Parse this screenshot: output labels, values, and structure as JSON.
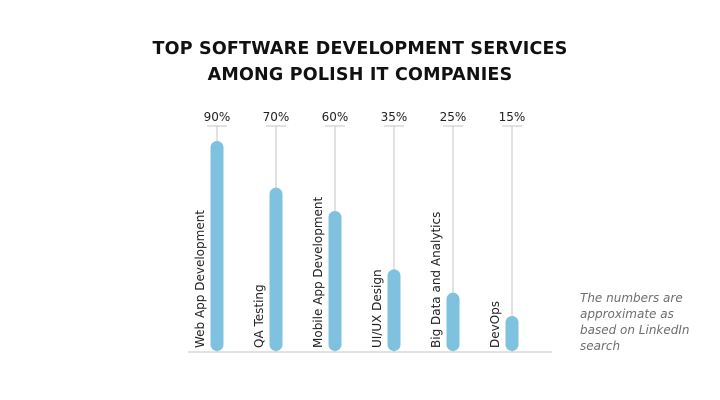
{
  "chart_data": {
    "type": "bar",
    "title_lines": [
      "TOP SOFTWARE DEVELOPMENT SERVICES",
      "AMONG POLISH IT COMPANIES"
    ],
    "categories": [
      "Web App Development",
      "QA Testing",
      "Mobile App Development",
      "UI/UX Design",
      "Big Data and Analytics",
      "DevOps"
    ],
    "values": [
      90,
      70,
      60,
      35,
      25,
      15
    ],
    "value_labels": [
      "90%",
      "70%",
      "60%",
      "35%",
      "25%",
      "15%"
    ],
    "ylim": [
      0,
      100
    ],
    "orientation": "vertical",
    "legend": "none",
    "grid": false,
    "bar_color": "#7ec2e0",
    "line_color": "#c4c4c4",
    "note": "The numbers are approximate as based on LinkedIn search"
  }
}
